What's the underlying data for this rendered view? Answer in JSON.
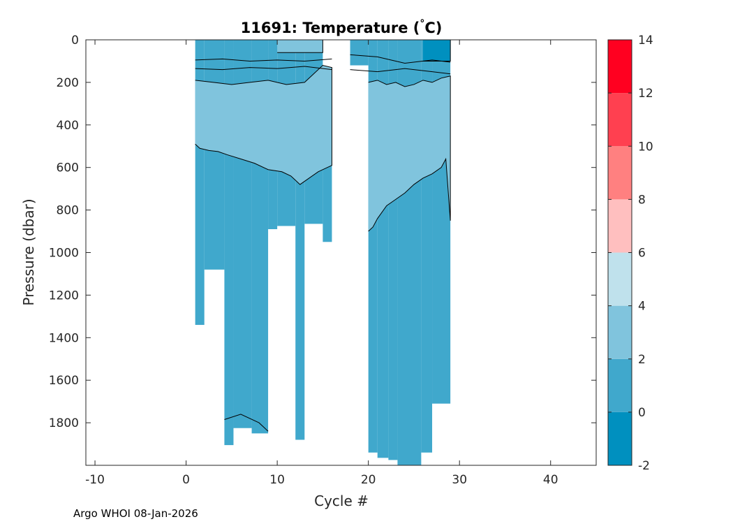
{
  "chart_data": {
    "type": "heatmap",
    "title_main": "11691:  Temperature (",
    "title_degree": "°",
    "title_unit": "C)",
    "xlabel": "Cycle #",
    "ylabel": "Pressure (dbar)",
    "credit": "Argo WHOI 08-Jan-2026",
    "xlim": [
      -11,
      45
    ],
    "ylim": [
      0,
      2000
    ],
    "y_reversed": true,
    "xticks": [
      "-10",
      "0",
      "10",
      "20",
      "30",
      "40"
    ],
    "xtick_values": [
      -10,
      0,
      10,
      20,
      30,
      40
    ],
    "yticks": [
      "0",
      "200",
      "400",
      "600",
      "800",
      "1000",
      "1200",
      "1400",
      "1600",
      "1800"
    ],
    "ytick_values": [
      0,
      200,
      400,
      600,
      800,
      1000,
      1200,
      1400,
      1600,
      1800
    ],
    "colorbar": {
      "min": -2,
      "max": 14,
      "tick_labels": [
        "-2",
        "0",
        "2",
        "4",
        "6",
        "8",
        "10",
        "12",
        "14"
      ],
      "tick_values": [
        -2,
        0,
        2,
        4,
        6,
        8,
        10,
        12,
        14
      ],
      "bands": [
        {
          "from": -2,
          "to": 0,
          "color": "#0090bf"
        },
        {
          "from": 0,
          "to": 2,
          "color": "#40a8cc"
        },
        {
          "from": 2,
          "to": 4,
          "color": "#80c4dd"
        },
        {
          "from": 4,
          "to": 6,
          "color": "#bfe1ec"
        },
        {
          "from": 6,
          "to": 8,
          "color": "#ffbfbf"
        },
        {
          "from": 8,
          "to": 10,
          "color": "#ff8080"
        },
        {
          "from": 10,
          "to": 12,
          "color": "#ff4050"
        },
        {
          "from": 12,
          "to": 14,
          "color": "#ff0020"
        }
      ]
    },
    "profiles": [
      {
        "x0": 1,
        "x1": 2,
        "max_pressure": 1340
      },
      {
        "x0": 2,
        "x1": 4.2,
        "max_pressure": 1080
      },
      {
        "x0": 4.2,
        "x1": 5.2,
        "max_pressure": 1905
      },
      {
        "x0": 5.2,
        "x1": 7.2,
        "max_pressure": 1825
      },
      {
        "x0": 7.2,
        "x1": 9,
        "max_pressure": 1850
      },
      {
        "x0": 9,
        "x1": 10,
        "max_pressure": 890
      },
      {
        "x0": 10,
        "x1": 12,
        "max_pressure": 875
      },
      {
        "x0": 12,
        "x1": 13,
        "max_pressure": 1880
      },
      {
        "x0": 13,
        "x1": 15,
        "max_pressure": 865
      },
      {
        "x0": 15,
        "x1": 16,
        "max_pressure": 950,
        "min_pressure": 130
      },
      {
        "x0": 18,
        "x1": 20,
        "max_pressure": 120
      },
      {
        "x0": 20,
        "x1": 21,
        "max_pressure": 1940
      },
      {
        "x0": 21,
        "x1": 22.2,
        "max_pressure": 1965
      },
      {
        "x0": 22.2,
        "x1": 23.2,
        "max_pressure": 1975
      },
      {
        "x0": 23.2,
        "x1": 25.8,
        "max_pressure": 2000
      },
      {
        "x0": 25.8,
        "x1": 27,
        "max_pressure": 1940
      },
      {
        "x0": 27,
        "x1": 29,
        "max_pressure": 1710
      }
    ],
    "regions": [
      {
        "name": "warm-layer-west",
        "value_range": "2-4",
        "x": [
          1,
          1.5,
          2.5,
          3.5,
          4.5,
          6,
          7.5,
          9,
          10.5,
          11.5,
          12.5,
          13.5,
          14.5,
          15.5,
          16,
          16,
          15,
          13,
          11,
          9,
          7,
          5,
          3,
          1
        ],
        "y": [
          490,
          510,
          520,
          525,
          540,
          560,
          580,
          610,
          620,
          640,
          680,
          650,
          620,
          600,
          590,
          130,
          120,
          200,
          210,
          190,
          200,
          210,
          200,
          190
        ]
      },
      {
        "name": "warm-layer-east",
        "value_range": "2-4",
        "x": [
          20,
          20.5,
          21,
          22,
          23,
          24,
          25,
          26,
          27,
          28,
          28.5,
          29,
          29,
          28,
          27,
          26,
          25,
          24,
          23,
          22,
          21,
          20
        ],
        "y": [
          900,
          880,
          840,
          780,
          750,
          720,
          680,
          650,
          630,
          600,
          560,
          850,
          170,
          180,
          200,
          190,
          210,
          220,
          200,
          210,
          190,
          200
        ]
      },
      {
        "name": "warm-patch-surface",
        "value_range": "2-4",
        "x": [
          10,
          15,
          15,
          10
        ],
        "y": [
          0,
          0,
          60,
          60
        ]
      },
      {
        "name": "cold-core-surface",
        "value_range": "-2-0",
        "x": [
          26,
          29,
          29,
          26
        ],
        "y": [
          0,
          0,
          100,
          100
        ]
      }
    ]
  }
}
